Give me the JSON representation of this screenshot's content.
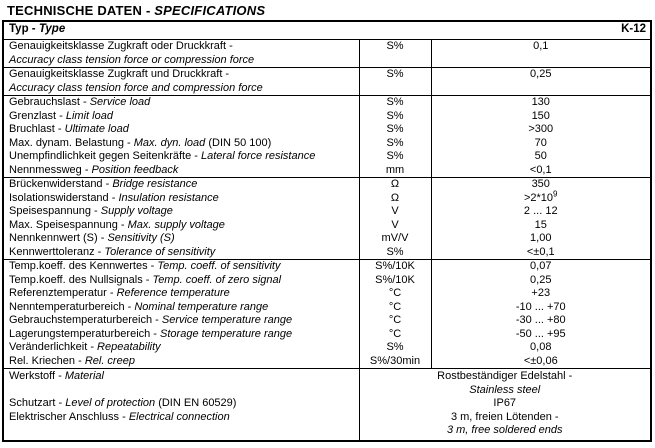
{
  "page_title": {
    "main": "TECHNISCHE DATEN - ",
    "italic": "SPECIFICATIONS"
  },
  "header": {
    "type_de": "Typ - ",
    "type_en": "Type",
    "model": "K-12"
  },
  "rows": [
    {
      "de": "Genauigkeitsklasse Zugkraft oder Druckkraft -",
      "en": "Accuracy class tension force or compression force",
      "unit": "S%",
      "value": "0,1"
    },
    {
      "de": "Genauigkeitsklasse Zugkraft und Druckkraft -",
      "en": "Accuracy class tension force and compression force",
      "unit": "S%",
      "value": "0,25"
    },
    {
      "de": "Gebrauchslast - ",
      "en": "Service load",
      "unit": "S%",
      "value": "130"
    },
    {
      "de": "Grenzlast - ",
      "en": "Limit load",
      "unit": "S%",
      "value": "150"
    },
    {
      "de": "Bruchlast - ",
      "en": "Ultimate load",
      "unit": "S%",
      "value": ">300"
    },
    {
      "de": "Max. dynam. Belastung - ",
      "en": "Max. dyn. load",
      "suffix": " (DIN 50 100)",
      "unit": "S%",
      "value": "70"
    },
    {
      "de": "Unempfindlichkeit gegen Seitenkräfte - ",
      "en": "Lateral force resistance",
      "unit": "S%",
      "value": "50"
    },
    {
      "de": "Nennmessweg - ",
      "en": "Position feedback",
      "unit": "mm",
      "value": "<0,1"
    },
    {
      "de": "Brückenwiderstand - ",
      "en": "Bridge resistance",
      "unit": "Ω",
      "value": "350"
    },
    {
      "de": "Isolationswiderstand - ",
      "en": "Insulation resistance",
      "unit": "Ω",
      "value": ">2*10",
      "value_sup": "9"
    },
    {
      "de": "Speisespannung - ",
      "en": "Supply voltage",
      "unit": "V",
      "value": "2 ... 12"
    },
    {
      "de": "Max. Speisespannung - ",
      "en": "Max. supply voltage",
      "unit": "V",
      "value": "15"
    },
    {
      "de": "Nennkennwert (S) - ",
      "en": "Sensitivity (S)",
      "unit": "mV/V",
      "value": "1,00"
    },
    {
      "de": "Kennwerttoleranz - ",
      "en": "Tolerance of sensitivity",
      "unit": "S%",
      "value": "<±0,1"
    },
    {
      "de": "Temp.koeff. des Kennwertes - ",
      "en": "Temp. coeff. of sensitivity",
      "unit": "S%/10K",
      "value": "0,07"
    },
    {
      "de": "Temp.koeff. des Nullsignals - ",
      "en": "Temp. coeff. of zero signal",
      "unit": "S%/10K",
      "value": "0,25"
    },
    {
      "de": "Referenztemperatur - ",
      "en": "Reference temperature",
      "unit": "°C",
      "value": "+23"
    },
    {
      "de": "Nenntemperaturbereich - ",
      "en": "Nominal temperature range",
      "unit": "°C",
      "value": "-10 ... +70"
    },
    {
      "de": "Gebrauchstemperaturbereich - ",
      "en": "Service temperature range",
      "unit": "°C",
      "value": "-30 ... +80"
    },
    {
      "de": "Lagerungstemperaturbereich - ",
      "en": "Storage temperature range",
      "unit": "°C",
      "value": "-50 ... +95"
    },
    {
      "de": "Veränderlichkeit - ",
      "en": "Repeatability",
      "unit": "S%",
      "value": "0,08"
    },
    {
      "de": "Rel. Kriechen - ",
      "en": "Rel. creep",
      "unit": "S%/30min",
      "value": "<±0,06"
    }
  ],
  "footer": {
    "werkstoff_de": "Werkstoff - ",
    "werkstoff_en": "Material",
    "schutzart_de": "Schutzart - ",
    "schutzart_en": "Level of protection",
    "schutzart_suffix": " (DIN  EN 60529)",
    "anschluss_de": "Elektrischer Anschluss - ",
    "anschluss_en": "Electrical connection",
    "material_de": "Rostbeständiger Edelstahl -",
    "material_en": "Stainless steel",
    "protection_value": "IP67",
    "connection_de": "3 m, freien Lötenden -",
    "connection_en": "3 m, free soldered ends"
  },
  "colors": {
    "text": "#000000",
    "background": "#ffffff",
    "border": "#000000"
  }
}
